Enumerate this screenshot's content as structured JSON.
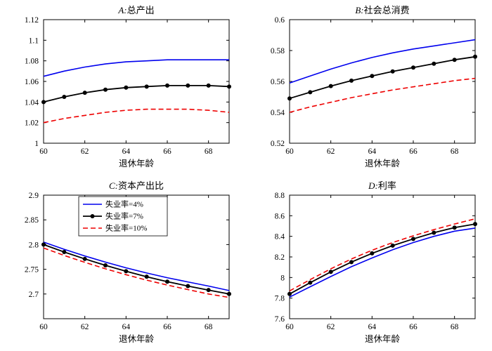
{
  "figure": {
    "background": "#ffffff",
    "axis_color": "#000000"
  },
  "styles": {
    "solid-blue": {
      "color": "#0000ee",
      "width": 1.6,
      "dash": null,
      "marker": false
    },
    "dotted-black": {
      "color": "#000000",
      "width": 1.8,
      "dash": null,
      "marker": true
    },
    "dashed-red": {
      "color": "#ee0000",
      "width": 1.6,
      "dash": "7 4",
      "marker": false
    }
  },
  "chart_data": [
    {
      "type": "line",
      "title_letter": "A",
      "title_text": "总产出",
      "xlabel": "退休年龄",
      "x": [
        60,
        61,
        62,
        63,
        64,
        65,
        66,
        67,
        68,
        69
      ],
      "xlim": [
        60,
        69
      ],
      "xticks": [
        60,
        62,
        64,
        66,
        68
      ],
      "xtick_labels": [
        "60",
        "62",
        "64",
        "66",
        "68"
      ],
      "ylim": [
        1.0,
        1.12
      ],
      "yticks": [
        1.0,
        1.02,
        1.04,
        1.06,
        1.08,
        1.1,
        1.12
      ],
      "ytick_labels": [
        "1",
        "1.02",
        "1.04",
        "1.06",
        "1.08",
        "1.1",
        "1.12"
      ],
      "legend": false,
      "series": [
        {
          "id": "unemployment-4pct",
          "name": "失业率=4%",
          "style": "solid-blue",
          "values": [
            1.065,
            1.07,
            1.074,
            1.077,
            1.079,
            1.08,
            1.081,
            1.081,
            1.081,
            1.081
          ]
        },
        {
          "id": "unemployment-7pct",
          "name": "失业率=7%",
          "style": "dotted-black",
          "values": [
            1.04,
            1.045,
            1.049,
            1.052,
            1.054,
            1.055,
            1.056,
            1.056,
            1.056,
            1.055
          ]
        },
        {
          "id": "unemployment-10pct",
          "name": "失业率=10%",
          "style": "dashed-red",
          "values": [
            1.02,
            1.024,
            1.027,
            1.03,
            1.032,
            1.033,
            1.033,
            1.033,
            1.032,
            1.03
          ]
        }
      ]
    },
    {
      "type": "line",
      "title_letter": "B",
      "title_text": "社会总消费",
      "xlabel": "退休年龄",
      "x": [
        60,
        61,
        62,
        63,
        64,
        65,
        66,
        67,
        68,
        69
      ],
      "xlim": [
        60,
        69
      ],
      "xticks": [
        60,
        62,
        64,
        66,
        68
      ],
      "xtick_labels": [
        "60",
        "62",
        "64",
        "66",
        "68"
      ],
      "ylim": [
        0.52,
        0.6
      ],
      "yticks": [
        0.52,
        0.54,
        0.56,
        0.58,
        0.6
      ],
      "ytick_labels": [
        "0.52",
        "0.54",
        "0.56",
        "0.58",
        "0.6"
      ],
      "legend": false,
      "series": [
        {
          "id": "unemployment-4pct",
          "name": "失业率=4%",
          "style": "solid-blue",
          "values": [
            0.559,
            0.5635,
            0.568,
            0.572,
            0.5755,
            0.5785,
            0.581,
            0.583,
            0.585,
            0.587
          ]
        },
        {
          "id": "unemployment-7pct",
          "name": "失业率=7%",
          "style": "dotted-black",
          "values": [
            0.549,
            0.553,
            0.557,
            0.5605,
            0.5635,
            0.5665,
            0.569,
            0.5715,
            0.574,
            0.576
          ]
        },
        {
          "id": "unemployment-10pct",
          "name": "失业率=10%",
          "style": "dashed-red",
          "values": [
            0.54,
            0.5435,
            0.5465,
            0.5495,
            0.552,
            0.5545,
            0.5565,
            0.5585,
            0.5605,
            0.562
          ]
        }
      ]
    },
    {
      "type": "line",
      "title_letter": "C",
      "title_text": "资本产出比",
      "xlabel": "退休年龄",
      "x": [
        60,
        61,
        62,
        63,
        64,
        65,
        66,
        67,
        68,
        69
      ],
      "xlim": [
        60,
        69
      ],
      "xticks": [
        60,
        62,
        64,
        66,
        68
      ],
      "xtick_labels": [
        "60",
        "62",
        "64",
        "66",
        "68"
      ],
      "ylim": [
        2.65,
        2.9
      ],
      "yticks": [
        2.7,
        2.75,
        2.8,
        2.85,
        2.9
      ],
      "ytick_labels": [
        "2.7",
        "2.75",
        "2.8",
        "2.85",
        "2.9"
      ],
      "legend": true,
      "series": [
        {
          "id": "unemployment-4pct",
          "name": "失业率=4%",
          "style": "solid-blue",
          "values": [
            2.805,
            2.7905,
            2.777,
            2.7645,
            2.753,
            2.7425,
            2.733,
            2.7245,
            2.716,
            2.707
          ]
        },
        {
          "id": "unemployment-7pct",
          "name": "失业率=7%",
          "style": "dotted-black",
          "values": [
            2.8,
            2.785,
            2.771,
            2.758,
            2.746,
            2.735,
            2.725,
            2.716,
            2.708,
            2.7
          ]
        },
        {
          "id": "unemployment-10pct",
          "name": "失业率=10%",
          "style": "dashed-red",
          "values": [
            2.793,
            2.778,
            2.764,
            2.751,
            2.739,
            2.728,
            2.718,
            2.709,
            2.7,
            2.693
          ]
        }
      ]
    },
    {
      "type": "line",
      "title_letter": "D",
      "title_text": "利率",
      "xlabel": "退休年龄",
      "x": [
        60,
        61,
        62,
        63,
        64,
        65,
        66,
        67,
        68,
        69
      ],
      "xlim": [
        60,
        69
      ],
      "xticks": [
        60,
        62,
        64,
        66,
        68
      ],
      "xtick_labels": [
        "60",
        "62",
        "64",
        "66",
        "68"
      ],
      "ylim": [
        7.6,
        8.8
      ],
      "yticks": [
        7.6,
        7.8,
        8.0,
        8.2,
        8.4,
        8.6,
        8.8
      ],
      "ytick_labels": [
        "7.6",
        "7.8",
        "8",
        "8.2",
        "8.4",
        "8.6",
        "8.8"
      ],
      "legend": false,
      "series": [
        {
          "id": "unemployment-4pct",
          "name": "失业率=4%",
          "style": "solid-blue",
          "values": [
            7.81,
            7.91,
            8.01,
            8.105,
            8.19,
            8.27,
            8.34,
            8.4,
            8.45,
            8.48
          ]
        },
        {
          "id": "unemployment-7pct",
          "name": "失业率=7%",
          "style": "dotted-black",
          "values": [
            7.84,
            7.95,
            8.055,
            8.15,
            8.235,
            8.31,
            8.375,
            8.435,
            8.485,
            8.52
          ]
        },
        {
          "id": "unemployment-10pct",
          "name": "失业率=10%",
          "style": "dashed-red",
          "values": [
            7.87,
            7.98,
            8.085,
            8.18,
            8.265,
            8.34,
            8.405,
            8.465,
            8.52,
            8.57
          ]
        }
      ]
    }
  ]
}
